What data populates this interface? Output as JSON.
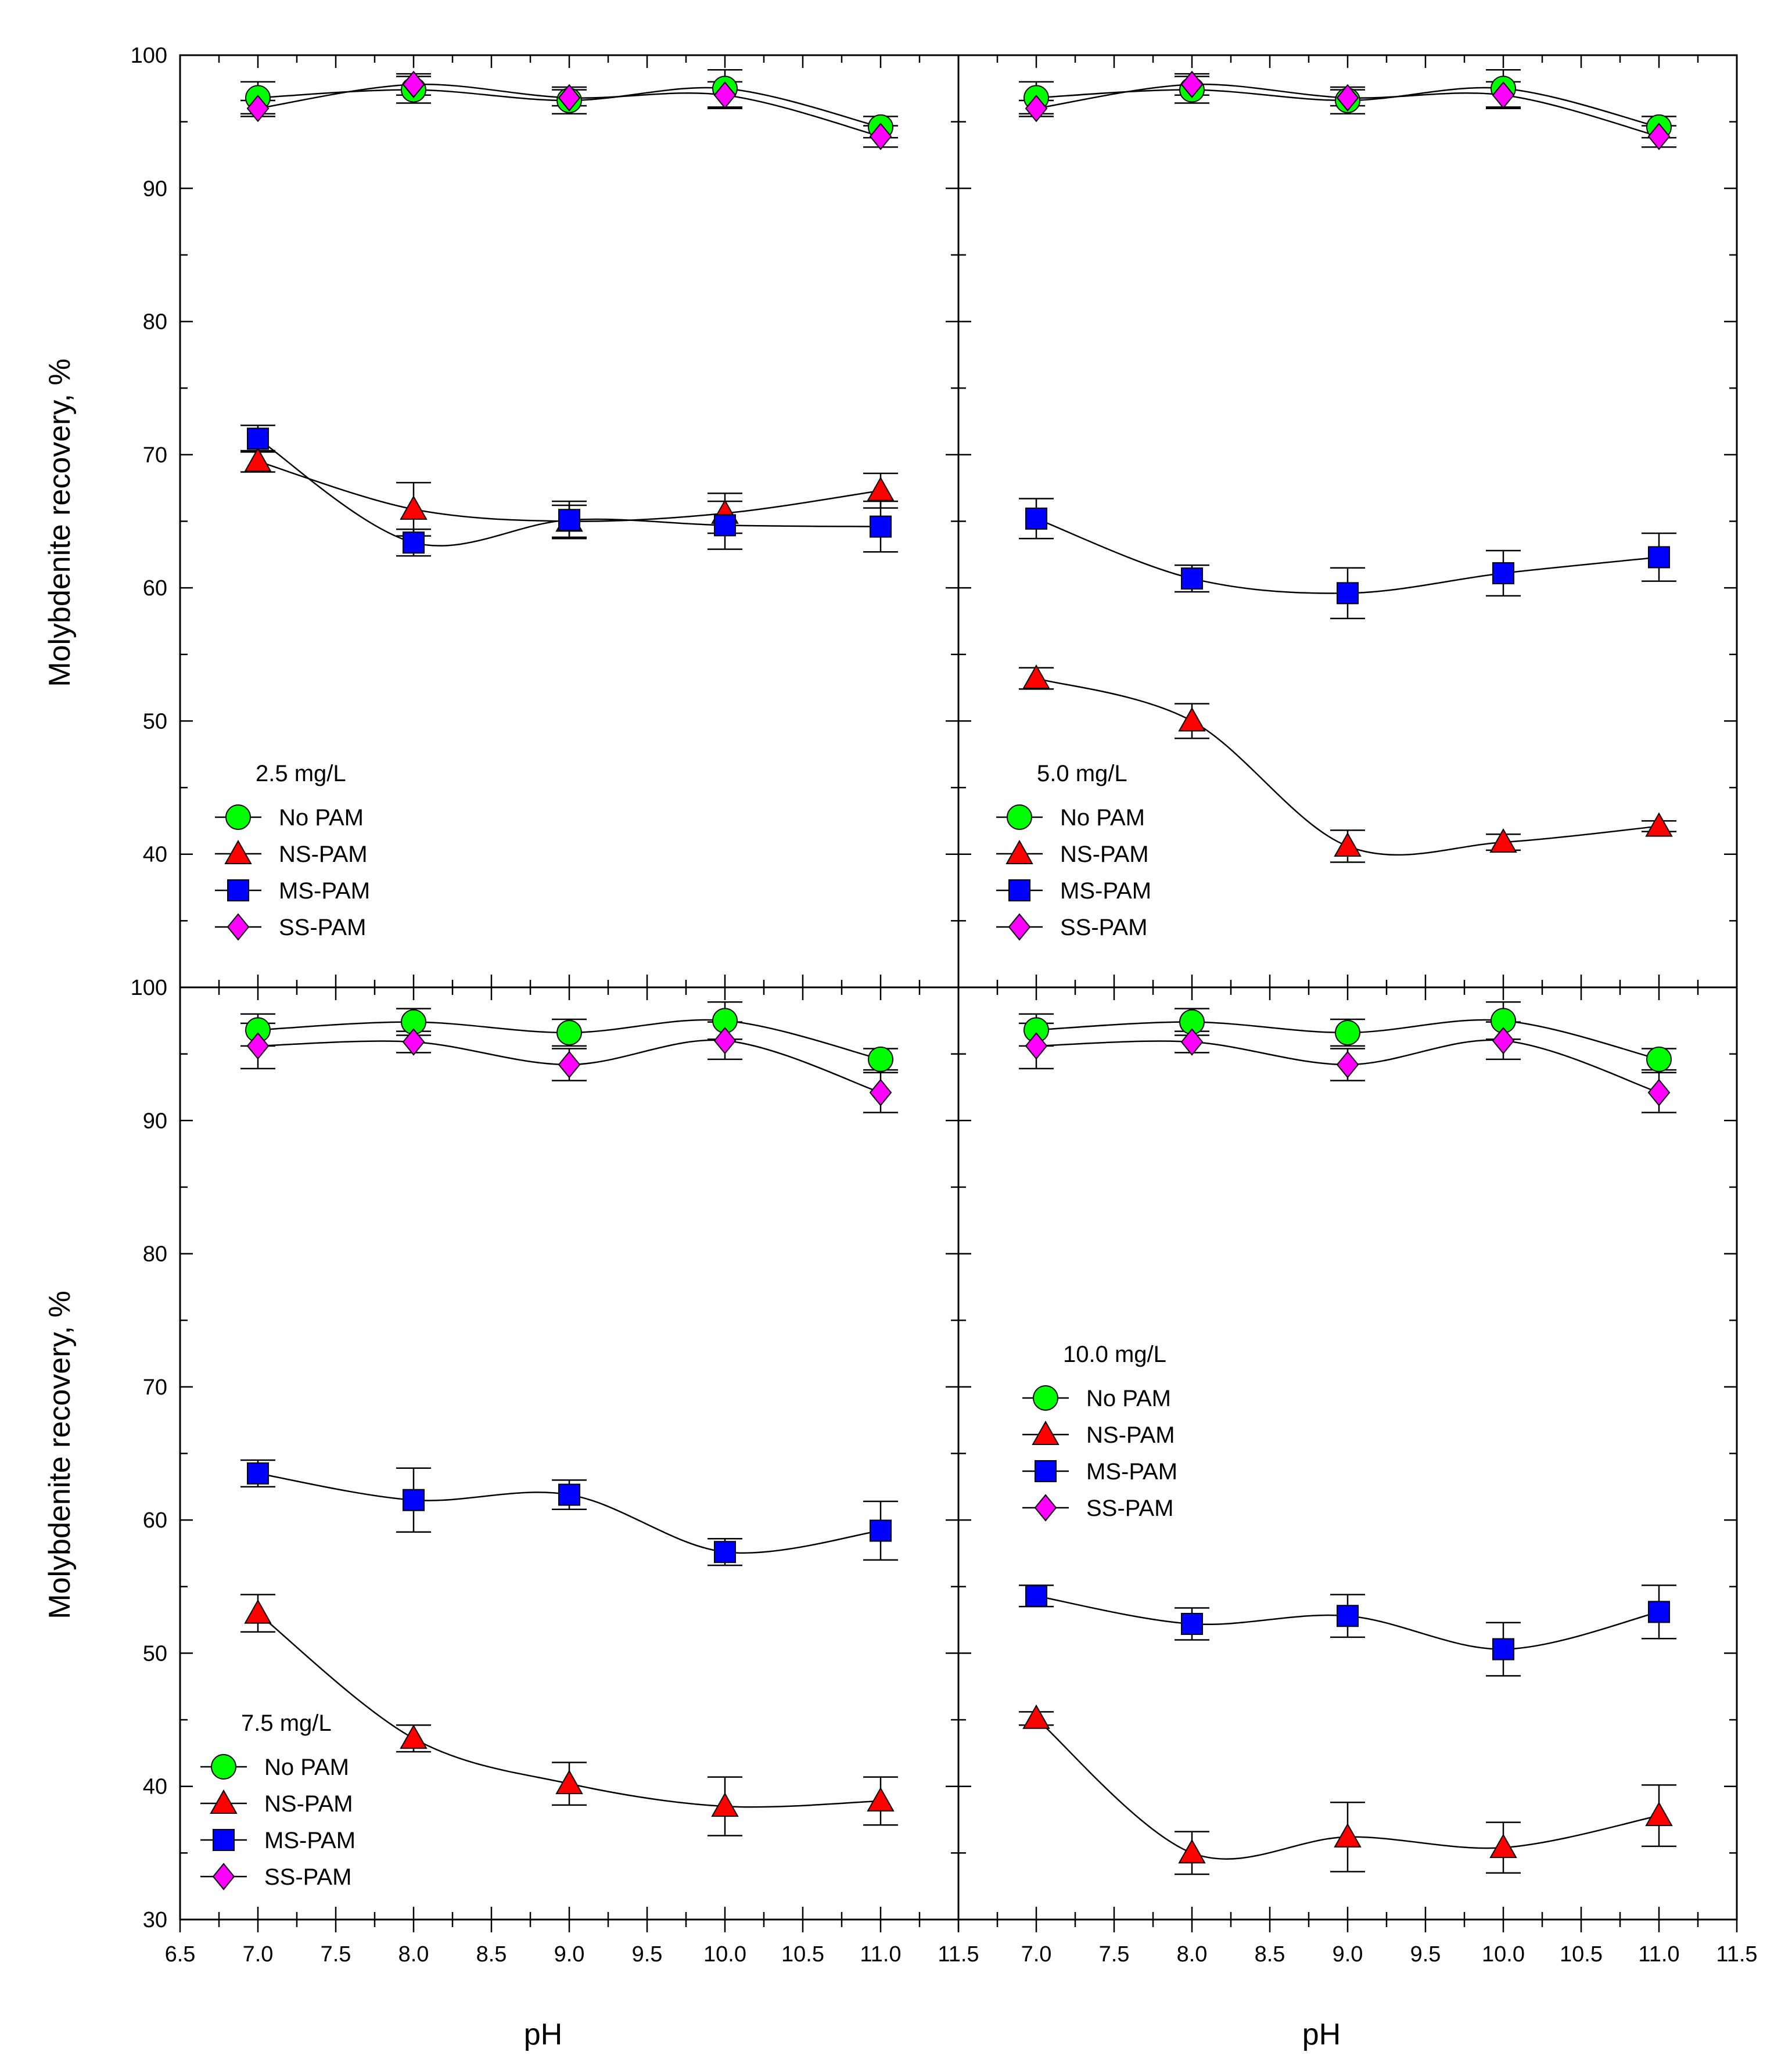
{
  "figure": {
    "ylabel": "Molybdenite recovery, %",
    "xlabel": "pH"
  },
  "colors": {
    "No PAM": "#00ff00",
    "NS-PAM": "#ff0000",
    "MS-PAM": "#0000ff",
    "SS-PAM": "#ff00ff"
  },
  "chart_data": [
    {
      "type": "line",
      "title": "2.5 mg/L",
      "xlabel": "pH",
      "ylabel": "Molybdenite recovery, %",
      "xlim": [
        6.5,
        11.5
      ],
      "ylim": [
        30,
        100
      ],
      "x": [
        7.0,
        8.0,
        9.0,
        10.0,
        11.0
      ],
      "series": [
        {
          "name": "No PAM",
          "marker": "circle",
          "values": [
            96.8,
            97.4,
            96.6,
            97.5,
            94.6
          ],
          "errors": [
            1.2,
            1.0,
            1.0,
            1.4,
            0.8
          ]
        },
        {
          "name": "NS-PAM",
          "marker": "triangle",
          "values": [
            69.5,
            65.9,
            65.0,
            65.6,
            67.3
          ],
          "errors": [
            0.8,
            2.0,
            1.2,
            1.5,
            1.3
          ]
        },
        {
          "name": "MS-PAM",
          "marker": "square",
          "values": [
            71.2,
            63.4,
            65.1,
            64.7,
            64.6
          ],
          "errors": [
            1.0,
            1.0,
            1.4,
            1.8,
            1.9
          ]
        },
        {
          "name": "SS-PAM",
          "marker": "diamond",
          "values": [
            96.0,
            97.8,
            96.8,
            97.0,
            93.9
          ],
          "errors": [
            0.6,
            0.8,
            0.6,
            1.0,
            0.8
          ]
        }
      ],
      "legend": {
        "title": "2.5 mg/L",
        "entries": [
          "No PAM",
          "NS-PAM",
          "MS-PAM",
          "SS-PAM"
        ],
        "position": "lower-left"
      }
    },
    {
      "type": "line",
      "title": "5.0 mg/L",
      "xlabel": "pH",
      "ylabel": "Molybdenite recovery, %",
      "xlim": [
        6.5,
        11.5
      ],
      "ylim": [
        30,
        100
      ],
      "x": [
        7.0,
        8.0,
        9.0,
        10.0,
        11.0
      ],
      "series": [
        {
          "name": "No PAM",
          "marker": "circle",
          "values": [
            96.8,
            97.4,
            96.6,
            97.5,
            94.6
          ],
          "errors": [
            1.2,
            1.0,
            1.0,
            1.4,
            0.8
          ]
        },
        {
          "name": "NS-PAM",
          "marker": "triangle",
          "values": [
            53.2,
            50.0,
            40.6,
            40.9,
            42.1
          ],
          "errors": [
            0.8,
            1.3,
            1.2,
            0.6,
            0.4
          ]
        },
        {
          "name": "MS-PAM",
          "marker": "square",
          "values": [
            65.2,
            60.7,
            59.6,
            61.1,
            62.3
          ],
          "errors": [
            1.5,
            1.0,
            1.9,
            1.7,
            1.8
          ]
        },
        {
          "name": "SS-PAM",
          "marker": "diamond",
          "values": [
            96.0,
            97.8,
            96.8,
            97.0,
            93.9
          ],
          "errors": [
            0.6,
            0.8,
            0.6,
            1.0,
            0.8
          ]
        }
      ],
      "legend": {
        "title": "5.0 mg/L",
        "entries": [
          "No PAM",
          "NS-PAM",
          "MS-PAM",
          "SS-PAM"
        ],
        "position": "lower-left"
      }
    },
    {
      "type": "line",
      "title": "7.5 mg/L",
      "xlabel": "pH",
      "ylabel": "Molybdenite recovery, %",
      "xlim": [
        6.5,
        11.5
      ],
      "ylim": [
        30,
        100
      ],
      "x": [
        7.0,
        8.0,
        9.0,
        10.0,
        11.0
      ],
      "series": [
        {
          "name": "No PAM",
          "marker": "circle",
          "values": [
            96.8,
            97.4,
            96.6,
            97.5,
            94.6
          ],
          "errors": [
            1.2,
            1.0,
            1.0,
            1.4,
            0.8
          ]
        },
        {
          "name": "NS-PAM",
          "marker": "triangle",
          "values": [
            53.0,
            43.6,
            40.2,
            38.5,
            38.9
          ],
          "errors": [
            1.4,
            1.0,
            1.6,
            2.2,
            1.8
          ]
        },
        {
          "name": "MS-PAM",
          "marker": "square",
          "values": [
            63.5,
            61.5,
            61.9,
            57.6,
            59.2
          ],
          "errors": [
            1.0,
            2.4,
            1.1,
            1.0,
            2.2
          ]
        },
        {
          "name": "SS-PAM",
          "marker": "diamond",
          "values": [
            95.6,
            95.9,
            94.2,
            96.0,
            92.1
          ],
          "errors": [
            1.7,
            0.8,
            1.2,
            1.4,
            1.5
          ]
        }
      ],
      "legend": {
        "title": "7.5 mg/L",
        "entries": [
          "No PAM",
          "NS-PAM",
          "MS-PAM",
          "SS-PAM"
        ],
        "position": "lower-left"
      }
    },
    {
      "type": "line",
      "title": "10.0 mg/L",
      "xlabel": "pH",
      "ylabel": "Molybdenite recovery, %",
      "xlim": [
        6.5,
        11.5
      ],
      "ylim": [
        30,
        100
      ],
      "x": [
        7.0,
        8.0,
        9.0,
        10.0,
        11.0
      ],
      "series": [
        {
          "name": "No PAM",
          "marker": "circle",
          "values": [
            96.8,
            97.4,
            96.6,
            97.5,
            94.6
          ],
          "errors": [
            1.2,
            1.0,
            1.0,
            1.4,
            0.8
          ]
        },
        {
          "name": "NS-PAM",
          "marker": "triangle",
          "values": [
            45.1,
            35.0,
            36.2,
            35.4,
            37.8
          ],
          "errors": [
            0.5,
            1.6,
            2.6,
            1.9,
            2.3
          ]
        },
        {
          "name": "MS-PAM",
          "marker": "square",
          "values": [
            54.3,
            52.2,
            52.8,
            50.3,
            53.1
          ],
          "errors": [
            0.8,
            1.2,
            1.6,
            2.0,
            2.0
          ]
        },
        {
          "name": "SS-PAM",
          "marker": "diamond",
          "values": [
            95.6,
            95.9,
            94.2,
            96.0,
            92.1
          ],
          "errors": [
            1.7,
            0.8,
            1.2,
            1.4,
            1.5
          ]
        }
      ],
      "legend": {
        "title": "10.0 mg/L",
        "entries": [
          "No PAM",
          "NS-PAM",
          "MS-PAM",
          "SS-PAM"
        ],
        "position": "center-left"
      }
    }
  ],
  "axes": {
    "y_ticks_top": [
      "40",
      "50",
      "60",
      "70",
      "80",
      "90",
      "100"
    ],
    "y_ticks_bottom": [
      "30",
      "40",
      "50",
      "60",
      "70",
      "80",
      "90",
      "100"
    ],
    "x_ticks_left": [
      "6.5",
      "7.0",
      "7.5",
      "8.0",
      "8.5",
      "9.0",
      "9.5",
      "10.0",
      "10.5",
      "11.0",
      "11.5"
    ],
    "x_ticks_right": [
      "7.0",
      "7.5",
      "8.0",
      "8.5",
      "9.0",
      "9.5",
      "10.0",
      "10.5",
      "11.0",
      "11.5"
    ]
  }
}
